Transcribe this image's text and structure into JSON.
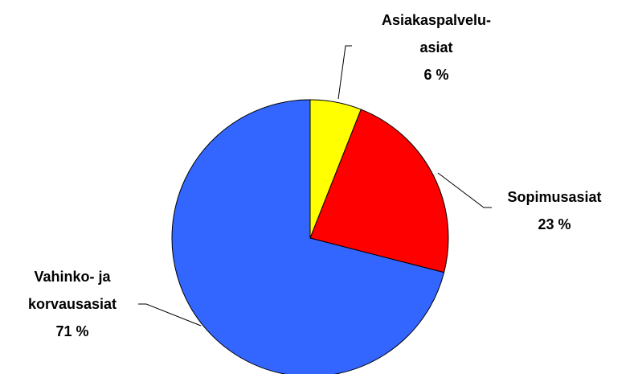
{
  "chart_data": {
    "type": "pie",
    "categories": [
      "Asiakaspalvelu-\nasiat",
      "Sopimusasiat",
      "Vahinko- ja\nkorvausasiat"
    ],
    "values": [
      6,
      23,
      71
    ],
    "value_labels": [
      "6 %",
      "23 %",
      "71 %"
    ],
    "colors": [
      "#ffff00",
      "#ff0000",
      "#3366ff"
    ]
  }
}
